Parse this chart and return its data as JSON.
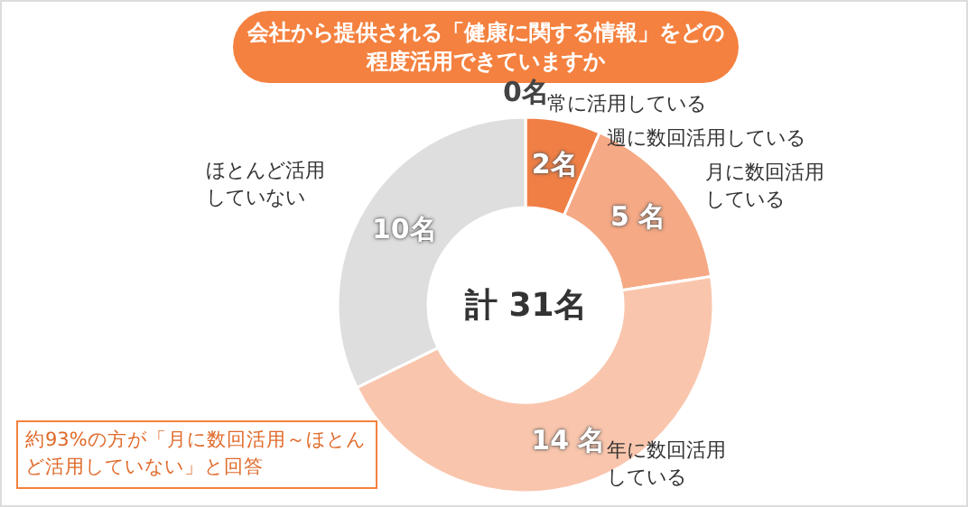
{
  "chart_data": {
    "type": "donut",
    "title": "会社から提供される「健康に関する情報」をどの程度活用できていますか",
    "categories": [
      "常に活用している",
      "週に数回活用している",
      "月に数回活用している",
      "年に数回活用している",
      "ほとんど活用していない"
    ],
    "values": [
      0,
      2,
      5,
      14,
      10
    ],
    "value_labels": [
      "0名",
      "2名",
      "5 名",
      "14 名",
      "10名"
    ],
    "colors": [
      null,
      "#f07f45",
      "#f5a985",
      "#f9c6ad",
      "#dedede"
    ],
    "annotations": [
      "計 31名",
      "約93%の方が「月に数回活用～ほとんど活用していない」と回答"
    ]
  }
}
